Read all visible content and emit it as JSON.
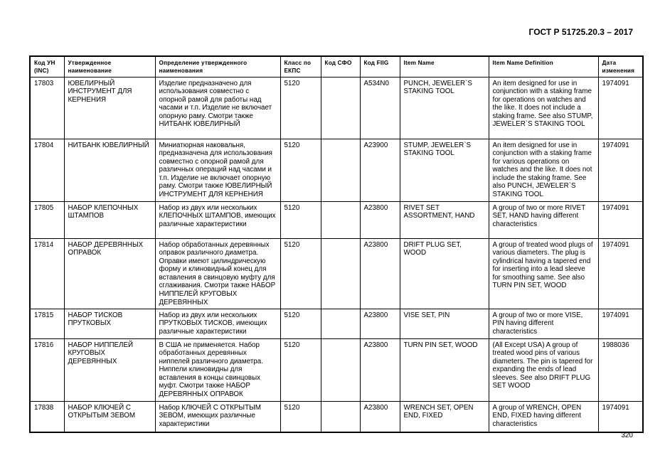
{
  "header": {
    "doc_title": "ГОСТ Р 51725.20.3 – 2017"
  },
  "table": {
    "columns": [
      "Код УН (INC)",
      "Утвержденное наименование",
      "Определение утвержденного наименования",
      "Класс по ЕКПС",
      "Код СФО",
      "Код FIIG",
      "Item Name",
      "Item Name Definition",
      "Дата изменения"
    ],
    "rows": [
      {
        "inc": "17803",
        "name": "ЮВЕЛИРНЫЙ ИНСТРУМЕНТ ДЛЯ КЕРНЕНИЯ",
        "definition": "Изделие предназначено для использования совместно с опорной рамой для работы над часами и т.п. Изделие не включает опорную раму. Смотри также НИТБАНК ЮВЕЛИРНЫЙ",
        "class": "5120",
        "sfo": "",
        "fiig": "A534N0",
        "item_name": "PUNCH, JEWELER`S STAKING TOOL",
        "item_def": "An item designed for use in conjunction with a staking frame for operations on watches and the like. It does not include a staking frame. See also STUMP, JEWELER`S STAKING TOOL",
        "date": "1974091"
      },
      {
        "inc": "17804",
        "name": "НИТБАНК ЮВЕЛИРНЫЙ",
        "definition": "Миниатюрная наковальня, предназначена для использования совместно с опорной рамой для различных операций над часами и т.п. Изделие не включает опорную раму. Смотри также ЮВЕЛИРНЫЙ ИНСТРУМЕНТ ДЛЯ КЕРНЕНИЯ",
        "class": "5120",
        "sfo": "",
        "fiig": "A23900",
        "item_name": "STUMP, JEWELER`S STAKING TOOL",
        "item_def": "An item designed for use in conjunction with a staking frame for various operations on watches and the like. It does not include the staking frame. See also PUNCH, JEWELER`S STAKING TOOL",
        "date": "1974091"
      },
      {
        "inc": "17805",
        "name": "НАБОР КЛЕПОЧНЫХ ШТАМПОВ",
        "definition": "Набор из двух или нескольких КЛЕПОЧНЫХ ШТАМПОВ, имеющих различные характеристики",
        "class": "5120",
        "sfo": "",
        "fiig": "A23800",
        "item_name": "RIVET SET ASSORTMENT, HAND",
        "item_def": "A group of two or more RIVET SET, HAND having different characteristics",
        "date": "1974091"
      },
      {
        "inc": "17814",
        "name": "НАБОР ДЕРЕВЯННЫХ ОПРАВОК",
        "definition": "Набор обработанных деревянных оправок различного диаметра. Оправки имеют цилиндрическую форму и клиновидный конец для вставления в свинцовую муфту для сглаживания. Смотри также НАБОР НИППЕЛЕЙ КРУГОВЫХ ДЕРЕВЯННЫХ",
        "class": "5120",
        "sfo": "",
        "fiig": "A23800",
        "item_name": "DRIFT PLUG SET, WOOD",
        "item_def": "A group of treated wood plugs of various diameters. The plug is cylindrical having a tapered end for inserting into a lead sleeve for smoothing same. See also TURN PIN SET, WOOD",
        "date": "1974091"
      },
      {
        "inc": "17815",
        "name": "НАБОР ТИСКОВ ПРУТКОВЫХ",
        "definition": "Набор из двух или нескольких ПРУТКОВЫХ ТИСКОВ, имеющих различные характеристики",
        "class": "5120",
        "sfo": "",
        "fiig": "A23800",
        "item_name": "VISE SET, PIN",
        "item_def": "A group of two or more VISE, PIN having different characteristics",
        "date": "1974091"
      },
      {
        "inc": "17816",
        "name": "НАБОР НИППЕЛЕЙ КРУГОВЫХ ДЕРЕВЯННЫХ",
        "definition": "В США не применяется. Набор обработанных деревянных ниппелей различного диаметра. Ниппели клиновидны для вставления в концы свинцовых муфт. Смотри также НАБОР ДЕРЕВЯННЫХ ОПРАВОК",
        "class": "5120",
        "sfo": "",
        "fiig": "A23800",
        "item_name": "TURN PIN SET, WOOD",
        "item_def": "(All Except USA) A group of treated wood pins of various diameters. The pin is tapered for expanding the ends of lead sleeves. See also DRIFT PLUG SET WOOD",
        "date": "1988036"
      },
      {
        "inc": "17838",
        "name": "НАБОР КЛЮЧЕЙ С ОТКРЫТЫМ ЗЕВОМ",
        "definition": "Набор КЛЮЧЕЙ С ОТКРЫТЫМ ЗЕВОМ, имеющих различные характеристики",
        "class": "5120",
        "sfo": "",
        "fiig": "A23800",
        "item_name": "WRENCH SET, OPEN END, FIXED",
        "item_def": "A group of WRENCH, OPEN END, FIXED having different characteristics",
        "date": "1974091"
      }
    ]
  },
  "footer": {
    "page_number": "320"
  }
}
